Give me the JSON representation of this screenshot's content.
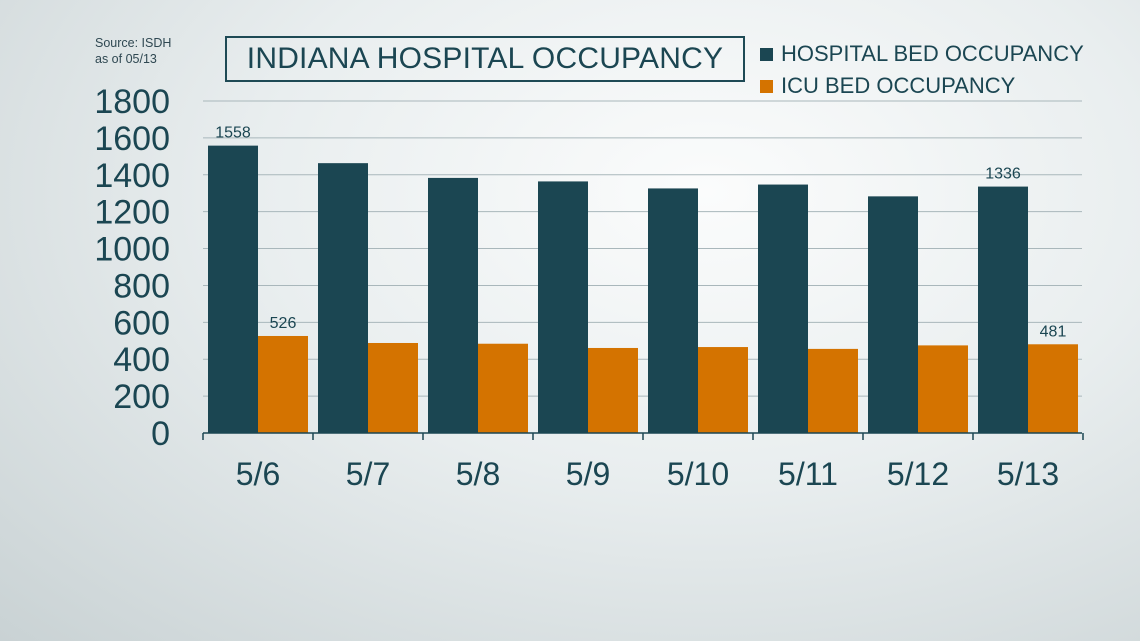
{
  "source": {
    "line1": "Source: ISDH",
    "line2": "as of 05/13"
  },
  "chart_data": {
    "type": "bar",
    "title": "INDIANA HOSPITAL OCCUPANCY",
    "categories": [
      "5/6",
      "5/7",
      "5/8",
      "5/9",
      "5/10",
      "5/11",
      "5/12",
      "5/13"
    ],
    "series": [
      {
        "name": "HOSPITAL BED OCCUPANCY",
        "color": "#1b4652",
        "values": [
          1558,
          1463,
          1383,
          1364,
          1326,
          1347,
          1283,
          1336
        ],
        "data_labels": [
          "1558",
          "",
          "",
          "",
          "",
          "",
          "",
          "1336"
        ]
      },
      {
        "name": "ICU BED OCCUPANCY",
        "color": "#d47300",
        "values": [
          526,
          488,
          484,
          461,
          466,
          456,
          475,
          481
        ],
        "data_labels": [
          "526",
          "",
          "",
          "",
          "",
          "",
          "",
          "481"
        ]
      }
    ],
    "y_ticks": [
      "0",
      "200",
      "400",
      "600",
      "800",
      "1000",
      "1200",
      "1400",
      "1600",
      "1800"
    ],
    "ylim": [
      0,
      1800
    ],
    "grid": true,
    "legend_position": "top-right"
  }
}
